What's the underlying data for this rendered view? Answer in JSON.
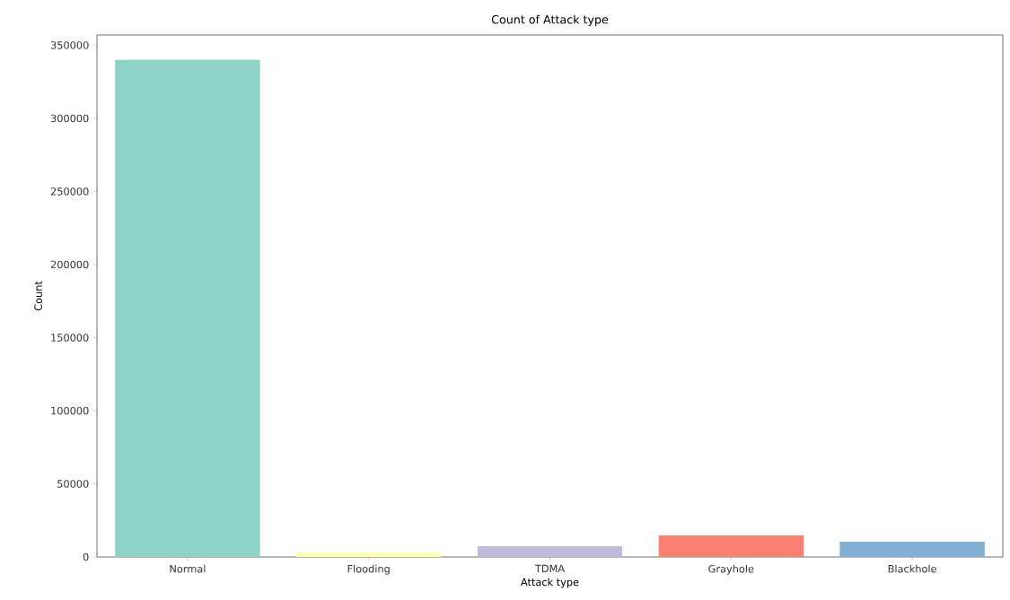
{
  "chart_data": {
    "type": "bar",
    "title": "Count of Attack type",
    "xlabel": "Attack type",
    "ylabel": "Count",
    "categories": [
      "Normal",
      "Flooding",
      "TDMA",
      "Grayhole",
      "Blackhole"
    ],
    "values": [
      340000,
      3000,
      7400,
      14700,
      10400
    ],
    "colors": [
      "#8dd3c7",
      "#ffffb3",
      "#bebada",
      "#fb8072",
      "#80b1d3"
    ],
    "ylim": [
      0,
      357000
    ],
    "yticks": [
      0,
      50000,
      100000,
      150000,
      200000,
      250000,
      300000,
      350000
    ],
    "grid": false
  }
}
